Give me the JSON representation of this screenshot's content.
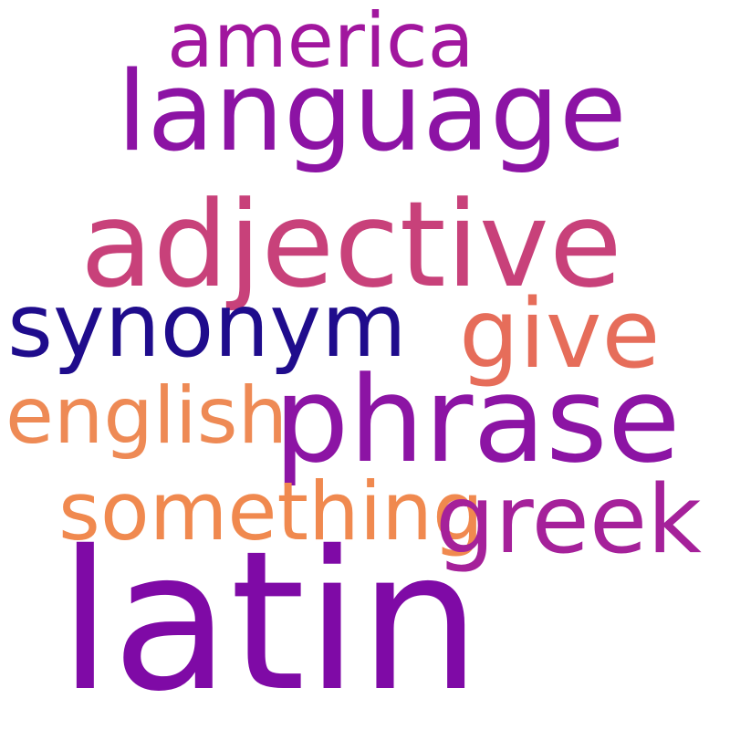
{
  "words": {
    "america": {
      "text": "america",
      "color": "#a1169e"
    },
    "language": {
      "text": "language",
      "color": "#8c13a4"
    },
    "adjective": {
      "text": "adjective",
      "color": "#c8417a"
    },
    "synonym": {
      "text": "synonym",
      "color": "#1f0c8c"
    },
    "give": {
      "text": "give",
      "color": "#e66d5a"
    },
    "english": {
      "text": "english",
      "color": "#ee8a55"
    },
    "phrase": {
      "text": "phrase",
      "color": "#8c14a4"
    },
    "something": {
      "text": "something",
      "color": "#f0894f"
    },
    "greek": {
      "text": "greek",
      "color": "#a5219a"
    },
    "latin": {
      "text": "latin",
      "color": "#7f0aa6"
    }
  }
}
